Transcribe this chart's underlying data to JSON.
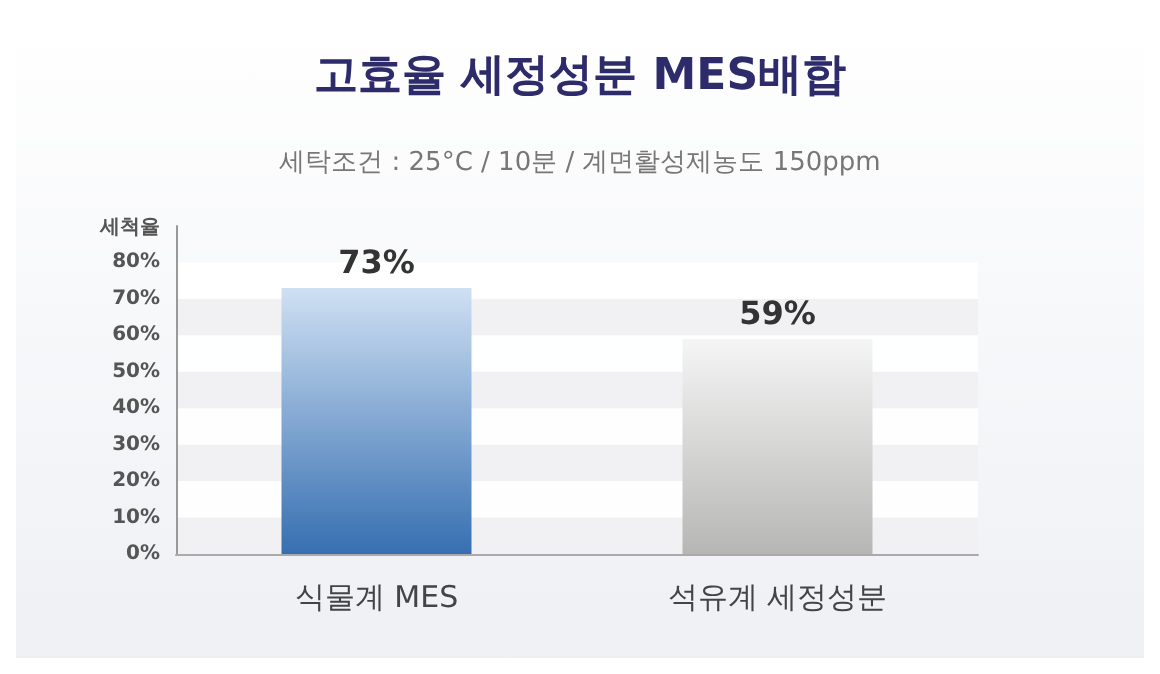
{
  "chart_data": {
    "type": "bar",
    "title": "고효율 세정성분 MES배합",
    "subtitle": "세탁조건 : 25°C / 10분 / 계면활성제농도 150ppm",
    "ylabel": "세척율",
    "categories": [
      "식물계 MES",
      "석유계 세정성분"
    ],
    "values": [
      73,
      59
    ],
    "colors": [
      "#3f82d0",
      "#d6d7d5"
    ],
    "value_labels": [
      "73%",
      "59%"
    ],
    "ylim": [
      0,
      90
    ],
    "yticks": [
      {
        "value": 0,
        "label": "0%"
      },
      {
        "value": 10,
        "label": "10%"
      },
      {
        "value": 20,
        "label": "20%"
      },
      {
        "value": 30,
        "label": "30%"
      },
      {
        "value": 40,
        "label": "40%"
      },
      {
        "value": 50,
        "label": "50%"
      },
      {
        "value": 60,
        "label": "60%"
      },
      {
        "value": 70,
        "label": "70%"
      },
      {
        "value": 80,
        "label": "80%"
      }
    ]
  }
}
